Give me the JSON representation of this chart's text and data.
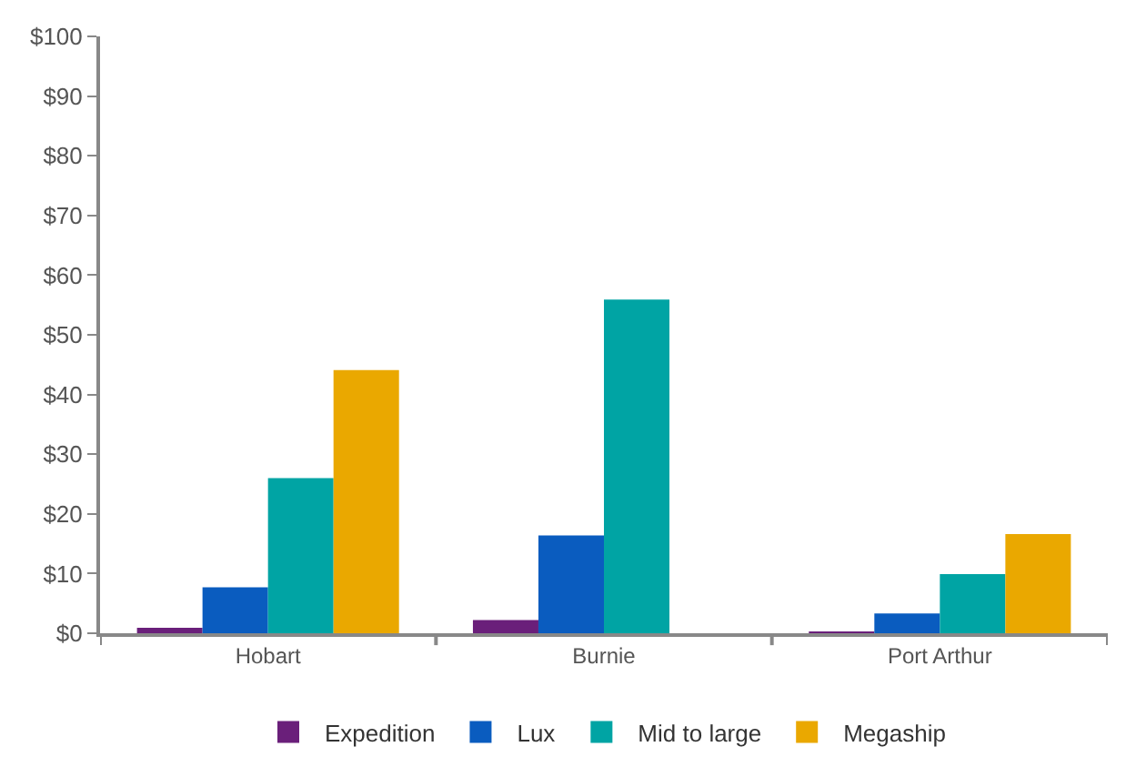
{
  "chart_data": {
    "type": "bar",
    "categories": [
      "Hobart",
      "Burnie",
      "Port Arthur"
    ],
    "series": [
      {
        "name": "Expedition",
        "color": "#6a1f7a",
        "values": [
          0.9,
          2.2,
          0.3
        ]
      },
      {
        "name": "Lux",
        "color": "#0a5cbf",
        "values": [
          7.7,
          16.4,
          3.3
        ]
      },
      {
        "name": "Mid to large",
        "color": "#00a4a4",
        "values": [
          26.0,
          55.9,
          9.9
        ]
      },
      {
        "name": "Megaship",
        "color": "#eaa800",
        "values": [
          44.1,
          0,
          16.6
        ]
      }
    ],
    "ylim": [
      0,
      100
    ],
    "yticks": [
      {
        "value": 0,
        "label": "$0"
      },
      {
        "value": 10,
        "label": "$10"
      },
      {
        "value": 20,
        "label": "$20"
      },
      {
        "value": 30,
        "label": "$30"
      },
      {
        "value": 40,
        "label": "$40"
      },
      {
        "value": 50,
        "label": "$50"
      },
      {
        "value": 60,
        "label": "$60"
      },
      {
        "value": 70,
        "label": "$70"
      },
      {
        "value": 80,
        "label": "$80"
      },
      {
        "value": 90,
        "label": "$90"
      },
      {
        "value": 100,
        "label": "$100"
      }
    ],
    "legend": "bottom"
  }
}
